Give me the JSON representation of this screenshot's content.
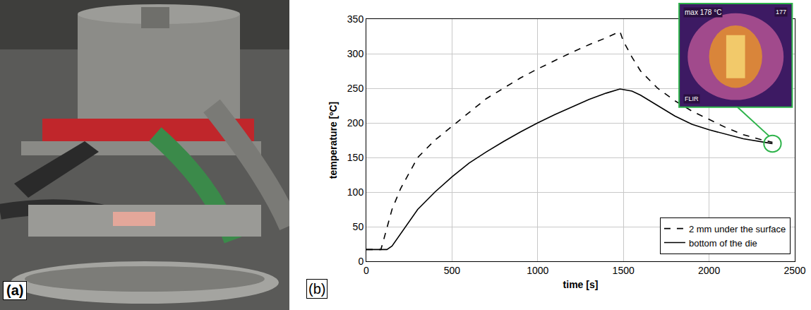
{
  "panel_a": {
    "label": "(a)"
  },
  "chart_data": {
    "type": "line",
    "panel_label": "(b)",
    "xlabel": "time [s]",
    "ylabel": "temperature [ºC]",
    "xlim": [
      0,
      2500
    ],
    "xticks": [
      0,
      500,
      1000,
      1500,
      2000,
      2500
    ],
    "ylim": [
      0,
      350
    ],
    "yticks": [
      0,
      50,
      100,
      150,
      200,
      250,
      300,
      350
    ],
    "grid": true,
    "legend": "lower right",
    "series": [
      {
        "name": "2 mm under the surface",
        "color": "#000000",
        "line_style": "dashed",
        "x": [
          0,
          85,
          100,
          150,
          200,
          300,
          400,
          500,
          600,
          700,
          800,
          900,
          1000,
          1100,
          1200,
          1300,
          1400,
          1480,
          1500,
          1550,
          1600,
          1700,
          1800,
          1900,
          2000,
          2100,
          2200,
          2300,
          2370
        ],
        "values": [
          17,
          17,
          30,
          75,
          105,
          150,
          175,
          195,
          215,
          235,
          250,
          265,
          278,
          290,
          302,
          313,
          323,
          332,
          318,
          295,
          275,
          250,
          232,
          217,
          205,
          193,
          183,
          176,
          172
        ]
      },
      {
        "name": "bottom of the die",
        "color": "#000000",
        "line_style": "solid",
        "x": [
          0,
          120,
          150,
          200,
          300,
          400,
          500,
          600,
          700,
          800,
          900,
          1000,
          1100,
          1200,
          1300,
          1400,
          1480,
          1550,
          1600,
          1700,
          1800,
          1900,
          2000,
          2200,
          2370
        ],
        "values": [
          17,
          17,
          22,
          40,
          75,
          100,
          122,
          142,
          158,
          173,
          187,
          200,
          212,
          223,
          234,
          243,
          249,
          246,
          240,
          225,
          210,
          198,
          190,
          177,
          170
        ]
      }
    ],
    "inset": {
      "texts": [
        "max 178 °C",
        "177",
        "FLIR"
      ],
      "points_to": {
        "x": 2370,
        "y": 170
      }
    }
  }
}
